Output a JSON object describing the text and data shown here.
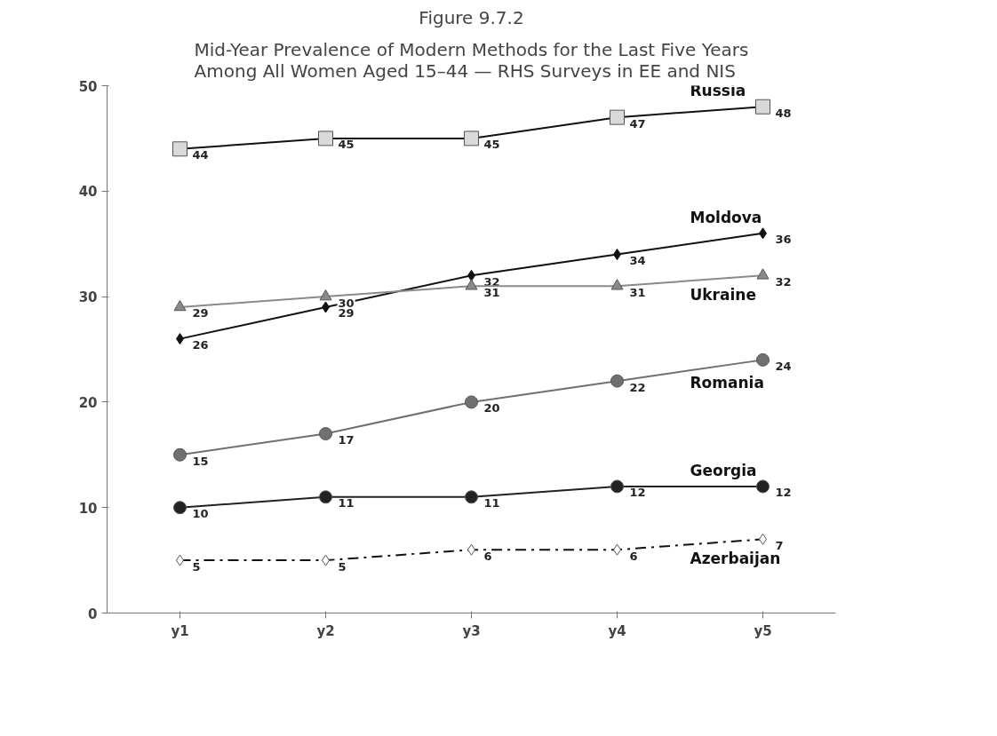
{
  "chart_data": {
    "type": "line",
    "title": "Figure 9.7.2",
    "subtitle": "Mid-Year Prevalence of Modern Methods for the Last Five Years\nAmong All Women Aged 15–44 — RHS Surveys in EE and NIS",
    "categories": [
      "y1",
      "y2",
      "y3",
      "y4",
      "y5"
    ],
    "series": [
      {
        "name": "Russia",
        "color": "#d9d9d9",
        "marker": "square",
        "values": [
          44,
          45,
          45,
          47,
          48
        ]
      },
      {
        "name": "Moldova",
        "color": "#111111",
        "marker": "diamond",
        "values": [
          26,
          29,
          32,
          34,
          36
        ]
      },
      {
        "name": "Ukraine",
        "color": "#8a8a8a",
        "marker": "triangle",
        "values": [
          29,
          30,
          31,
          31,
          32
        ]
      },
      {
        "name": "Romania",
        "color": "#707070",
        "marker": "circle",
        "values": [
          15,
          17,
          20,
          22,
          24
        ]
      },
      {
        "name": "Georgia",
        "color": "#222222",
        "marker": "circle",
        "values": [
          10,
          11,
          11,
          12,
          12
        ]
      },
      {
        "name": "Azerbaijan",
        "color": "#ffffff",
        "marker": "diamond",
        "line_style": "dashed",
        "values": [
          5,
          5,
          6,
          6,
          7
        ]
      }
    ],
    "ylim": [
      0,
      50
    ],
    "yticks": [
      0,
      10,
      20,
      30,
      40,
      50
    ],
    "grid": false,
    "legend": false,
    "data_labels": true
  }
}
